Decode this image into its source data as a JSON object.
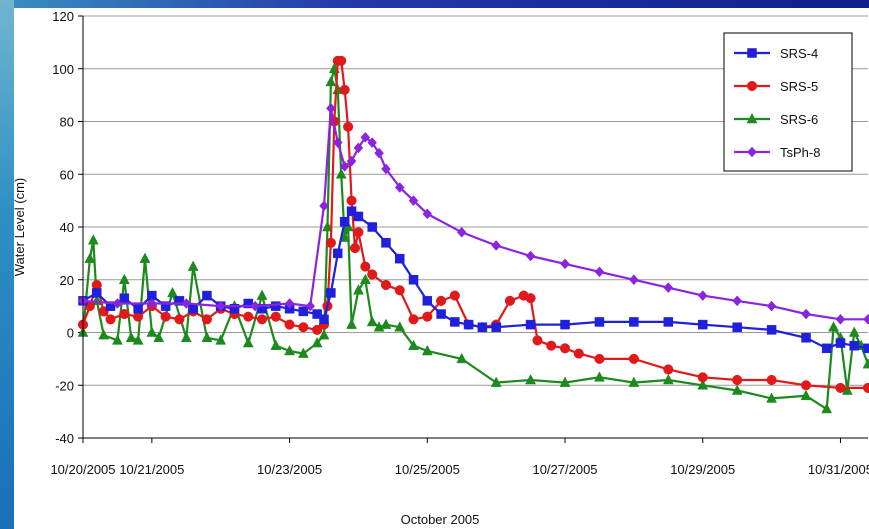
{
  "chart_data": {
    "type": "line",
    "title": "",
    "xlabel": "October 2005",
    "ylabel": "Water Level (cm)",
    "ylim": [
      -40,
      120
    ],
    "yticks": [
      -40,
      -20,
      0,
      20,
      40,
      60,
      80,
      100,
      120
    ],
    "xlim": [
      0,
      11.4
    ],
    "xticks": [
      {
        "pos": 0,
        "label": "10/20/2005"
      },
      {
        "pos": 1,
        "label": "10/21/2005"
      },
      {
        "pos": 3,
        "label": "10/23/2005"
      },
      {
        "pos": 5,
        "label": "10/25/2005"
      },
      {
        "pos": 7,
        "label": "10/27/2005"
      },
      {
        "pos": 9,
        "label": "10/29/2005"
      },
      {
        "pos": 11,
        "label": "10/31/2005"
      }
    ],
    "grid": true,
    "legend_position": "top-right",
    "series": [
      {
        "name": "SRS-4",
        "color": "#1f1fdc",
        "marker": "square",
        "x": [
          0,
          0.2,
          0.4,
          0.6,
          0.8,
          1.0,
          1.2,
          1.4,
          1.6,
          1.8,
          2.0,
          2.2,
          2.4,
          2.6,
          2.8,
          3.0,
          3.2,
          3.4,
          3.5,
          3.6,
          3.7,
          3.8,
          3.9,
          4.0,
          4.2,
          4.4,
          4.6,
          4.8,
          5.0,
          5.2,
          5.4,
          5.6,
          5.8,
          6.0,
          6.5,
          7.0,
          7.5,
          8.0,
          8.5,
          9.0,
          9.5,
          10.0,
          10.5,
          10.8,
          11.0,
          11.2,
          11.4
        ],
        "y": [
          12,
          15,
          10,
          13,
          9,
          14,
          10,
          12,
          9,
          14,
          10,
          9,
          11,
          9,
          10,
          9,
          8,
          7,
          5,
          15,
          30,
          42,
          46,
          44,
          40,
          34,
          28,
          20,
          12,
          7,
          4,
          3,
          2,
          2,
          3,
          3,
          4,
          4,
          4,
          3,
          2,
          1,
          -2,
          -6,
          -4,
          -5,
          -6
        ]
      },
      {
        "name": "SRS-5",
        "color": "#e01a1a",
        "marker": "circle",
        "x": [
          0,
          0.1,
          0.2,
          0.3,
          0.4,
          0.6,
          0.8,
          1.0,
          1.2,
          1.4,
          1.6,
          1.8,
          2.0,
          2.2,
          2.4,
          2.6,
          2.8,
          3.0,
          3.2,
          3.4,
          3.5,
          3.55,
          3.6,
          3.65,
          3.7,
          3.75,
          3.8,
          3.85,
          3.9,
          3.95,
          4.0,
          4.1,
          4.2,
          4.4,
          4.6,
          4.8,
          5.0,
          5.2,
          5.4,
          5.6,
          5.8,
          6.0,
          6.2,
          6.4,
          6.5,
          6.6,
          6.8,
          7.0,
          7.2,
          7.5,
          8.0,
          8.5,
          9.0,
          9.5,
          10.0,
          10.5,
          11.0,
          11.4
        ],
        "y": [
          3,
          10,
          18,
          8,
          5,
          7,
          6,
          10,
          6,
          5,
          8,
          5,
          9,
          7,
          6,
          5,
          6,
          3,
          2,
          1,
          3,
          10,
          34,
          80,
          103,
          103,
          92,
          78,
          50,
          32,
          38,
          25,
          22,
          18,
          16,
          5,
          6,
          12,
          14,
          3,
          2,
          3,
          12,
          14,
          13,
          -3,
          -5,
          -6,
          -8,
          -10,
          -10,
          -14,
          -17,
          -18,
          -18,
          -20,
          -21,
          -21
        ]
      },
      {
        "name": "SRS-6",
        "color": "#1c8a1c",
        "marker": "triangle",
        "x": [
          0,
          0.1,
          0.15,
          0.2,
          0.3,
          0.5,
          0.6,
          0.7,
          0.8,
          0.9,
          1.0,
          1.1,
          1.3,
          1.5,
          1.6,
          1.8,
          2.0,
          2.2,
          2.4,
          2.6,
          2.8,
          3.0,
          3.2,
          3.4,
          3.5,
          3.55,
          3.6,
          3.65,
          3.7,
          3.75,
          3.8,
          3.85,
          3.9,
          4.0,
          4.1,
          4.2,
          4.3,
          4.4,
          4.6,
          4.8,
          5.0,
          5.5,
          6.0,
          6.5,
          7.0,
          7.5,
          8.0,
          8.5,
          9.0,
          9.5,
          10.0,
          10.5,
          10.8,
          10.9,
          11.0,
          11.1,
          11.2,
          11.3,
          11.4
        ],
        "y": [
          0,
          28,
          35,
          12,
          -1,
          -3,
          20,
          -2,
          -3,
          28,
          0,
          -2,
          15,
          -2,
          25,
          -2,
          -3,
          10,
          -4,
          14,
          -5,
          -7,
          -8,
          -4,
          -1,
          40,
          95,
          100,
          92,
          60,
          36,
          40,
          3,
          16,
          20,
          4,
          2,
          3,
          2,
          -5,
          -7,
          -10,
          -19,
          -18,
          -19,
          -17,
          -19,
          -18,
          -20,
          -22,
          -25,
          -24,
          -29,
          2,
          -2,
          -22,
          0,
          -5,
          -12
        ]
      },
      {
        "name": "TsPh-8",
        "color": "#8a24e0",
        "marker": "diamond",
        "x": [
          0,
          0.5,
          1.0,
          1.5,
          2.0,
          2.5,
          3.0,
          3.3,
          3.5,
          3.6,
          3.7,
          3.8,
          3.9,
          4.0,
          4.1,
          4.2,
          4.3,
          4.4,
          4.6,
          4.8,
          5.0,
          5.5,
          6.0,
          6.5,
          7.0,
          7.5,
          8.0,
          8.5,
          9.0,
          9.5,
          10.0,
          10.5,
          11.0,
          11.4
        ],
        "y": [
          12,
          11,
          11,
          11,
          10,
          10,
          11,
          10,
          48,
          85,
          72,
          63,
          65,
          70,
          74,
          72,
          68,
          62,
          55,
          50,
          45,
          38,
          33,
          29,
          26,
          23,
          20,
          17,
          14,
          12,
          10,
          7,
          5,
          5
        ]
      }
    ]
  }
}
